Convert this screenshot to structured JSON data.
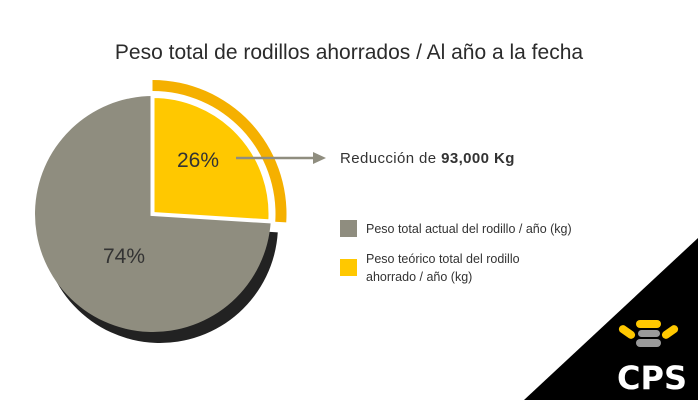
{
  "chart_data": {
    "type": "pie",
    "title": "Peso total de rodillos ahorrados / Al año a la fecha",
    "slices": [
      {
        "label": "Peso total actual del rodillo / año (kg)",
        "value": 74,
        "display": "74%",
        "color": "#8f8d7f"
      },
      {
        "label": "Peso teórico total del rodillo ahorrado / año (kg)",
        "value": 26,
        "display": "26%",
        "color": "#ffc800"
      }
    ],
    "legend": {
      "placement": "right",
      "entries": [
        {
          "lines": [
            "Peso total actual del rodillo / año (kg)"
          ],
          "color": "#8f8d7f"
        },
        {
          "lines": [
            "Peso teórico total del rodillo",
            "ahorrado / año (kg)"
          ],
          "color": "#ffc800"
        }
      ]
    },
    "annotation": {
      "prefix": "Reducción de ",
      "value": "93,000 Kg"
    }
  },
  "logo": {
    "text": "CPS"
  },
  "colors": {
    "shadow": "#222222",
    "accent_ring": "#f5b000",
    "arrow": "#8f8d7f",
    "logo_bg": "#000000"
  }
}
